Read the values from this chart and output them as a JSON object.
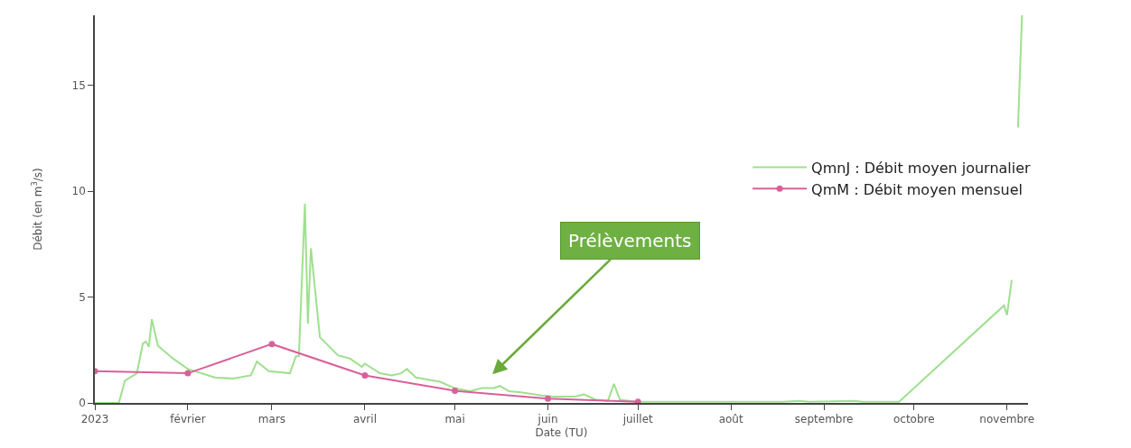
{
  "chart_data": {
    "type": "line",
    "xlabel": "Date (TU)",
    "ylabel": "Débit (en m$^{3}$/s)",
    "xlim": [
      "2023-01-01",
      "2023-11-08"
    ],
    "xticks": [
      {
        "value": "2023-01-01",
        "label": "2023"
      },
      {
        "value": "2023-02-01",
        "label": "février"
      },
      {
        "value": "2023-03-01",
        "label": "mars"
      },
      {
        "value": "2023-04-01",
        "label": "avril"
      },
      {
        "value": "2023-05-01",
        "label": "mai"
      },
      {
        "value": "2023-06-01",
        "label": "juin"
      },
      {
        "value": "2023-07-01",
        "label": "juillet"
      },
      {
        "value": "2023-08-01",
        "label": "août"
      },
      {
        "value": "2023-09-01",
        "label": "septembre"
      },
      {
        "value": "2023-10-01",
        "label": "octobre"
      },
      {
        "value": "2023-11-01",
        "label": "novembre"
      }
    ],
    "ylim": [
      0,
      18.3
    ],
    "yticks": [
      0,
      5,
      10,
      15
    ],
    "legend": "right",
    "series": [
      {
        "name": "QmnJ : Débit moyen journalier",
        "color": "#9fe08f",
        "marker": "none",
        "x": [
          "2023-01-01",
          "2023-01-09",
          "2023-01-11",
          "2023-01-15",
          "2023-01-17",
          "2023-01-18",
          "2023-01-19",
          "2023-01-20",
          "2023-01-22",
          "2023-01-27",
          "2023-02-01",
          "2023-02-10",
          "2023-02-16",
          "2023-02-22",
          "2023-02-24",
          "2023-02-28",
          "2023-03-07",
          "2023-03-09",
          "2023-03-10",
          "2023-03-12",
          "2023-03-13",
          "2023-03-14",
          "2023-03-17",
          "2023-03-23",
          "2023-03-27",
          "2023-03-31",
          "2023-04-01",
          "2023-04-06",
          "2023-04-10",
          "2023-04-13",
          "2023-04-15",
          "2023-04-18",
          "2023-04-26",
          "2023-05-01",
          "2023-05-06",
          "2023-05-10",
          "2023-05-14",
          "2023-05-16",
          "2023-05-19",
          "2023-05-23",
          "2023-05-30",
          "2023-06-03",
          "2023-06-10",
          "2023-06-13",
          "2023-06-17",
          "2023-06-21",
          "2023-06-23",
          "2023-06-25",
          "2023-07-01",
          "2023-08-18",
          "2023-08-24",
          "2023-08-27",
          "2023-09-11",
          "2023-09-14",
          "2023-09-26",
          "2023-10-31",
          "2023-11-01",
          "2023-11-02T14:00",
          "2023-11-03T12:00",
          "2023-11-04T16:00",
          "2023-11-06"
        ],
        "values": [
          0,
          0,
          1.05,
          1.4,
          2.8,
          2.9,
          2.65,
          3.95,
          2.7,
          2.1,
          1.6,
          1.2,
          1.15,
          1.3,
          1.95,
          1.5,
          1.4,
          2.2,
          2.2,
          9.4,
          3.75,
          7.3,
          3.1,
          2.25,
          2.1,
          1.7,
          1.85,
          1.4,
          1.3,
          1.4,
          1.6,
          1.2,
          1.0,
          0.7,
          0.55,
          0.7,
          0.7,
          0.8,
          0.55,
          0.5,
          0.35,
          0.3,
          0.3,
          0.4,
          0.15,
          0.1,
          0.9,
          0.15,
          0.05,
          0.05,
          0.1,
          0.05,
          0.1,
          0.05,
          0.05,
          4.6,
          4.15,
          5.8,
          null,
          13.0,
          18.3
        ]
      },
      {
        "name": "QmM : Débit moyen mensuel",
        "color": "#d9609a",
        "marker": "circle",
        "x": [
          "2023-01-01",
          "2023-02-01",
          "2023-03-01",
          "2023-04-01",
          "2023-05-01",
          "2023-06-01",
          "2023-07-01"
        ],
        "values": [
          1.5,
          1.4,
          2.78,
          1.3,
          0.57,
          0.2,
          0.05
        ]
      }
    ],
    "annotations": [
      "Prélèvements"
    ]
  }
}
